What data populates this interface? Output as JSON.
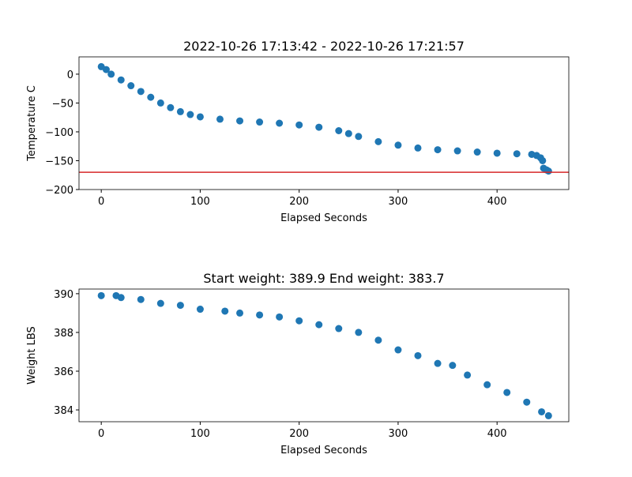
{
  "chart_data": [
    {
      "type": "scatter",
      "title": "2022-10-26 17:13:42 - 2022-10-26 17:21:57",
      "xlabel": "Elapsed Seconds",
      "ylabel": "Temperature C",
      "color": "#1f77b4",
      "x": [
        0,
        5,
        10,
        20,
        30,
        40,
        50,
        60,
        70,
        80,
        90,
        100,
        120,
        140,
        160,
        180,
        200,
        220,
        240,
        250,
        260,
        280,
        300,
        320,
        340,
        360,
        380,
        400,
        420,
        435,
        440,
        444,
        446,
        447,
        450,
        452
      ],
      "values": [
        13,
        8,
        0,
        -10,
        -20,
        -30,
        -40,
        -50,
        -58,
        -65,
        -70,
        -74,
        -78,
        -81,
        -83,
        -85,
        -88,
        -92,
        -98,
        -103,
        -108,
        -117,
        -123,
        -128,
        -131,
        -133,
        -135,
        -137,
        -138,
        -139,
        -141,
        -145,
        -150,
        -163,
        -166,
        -168
      ],
      "xlim": [
        -22.5,
        472.5
      ],
      "xticks": [
        0,
        100,
        200,
        300,
        400
      ],
      "ylim": [
        -200,
        30
      ],
      "yticks": [
        0,
        {
          "value": -50,
          "label": "−50"
        },
        {
          "value": -100,
          "label": "−100"
        },
        {
          "value": -150,
          "label": "−150"
        },
        {
          "value": -200,
          "label": "−200"
        }
      ],
      "hline": -170,
      "hline_color": "#d62728"
    },
    {
      "type": "scatter",
      "title": "Start weight: 389.9 End weight: 383.7",
      "xlabel": "Elapsed Seconds",
      "ylabel": "Weight LBS",
      "color": "#1f77b4",
      "x": [
        0,
        15,
        20,
        40,
        60,
        80,
        100,
        125,
        140,
        160,
        180,
        200,
        220,
        240,
        260,
        280,
        300,
        320,
        340,
        355,
        370,
        390,
        410,
        430,
        445,
        452
      ],
      "values": [
        389.9,
        389.9,
        389.8,
        389.7,
        389.5,
        389.4,
        389.2,
        389.1,
        389.0,
        388.9,
        388.8,
        388.6,
        388.4,
        388.2,
        388.0,
        387.6,
        387.1,
        386.8,
        386.4,
        386.3,
        385.8,
        385.3,
        384.9,
        384.4,
        383.9,
        383.7
      ],
      "xlim": [
        -22.5,
        472.5
      ],
      "xticks": [
        0,
        100,
        200,
        300,
        400
      ],
      "ylim": [
        383.39,
        390.24
      ],
      "yticks": [
        384,
        386,
        388,
        390
      ]
    }
  ]
}
